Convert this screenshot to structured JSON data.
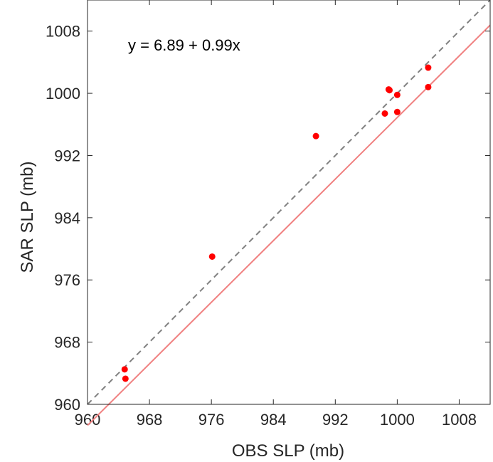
{
  "chart_data": {
    "type": "scatter",
    "title": "",
    "xlabel": "OBS SLP (mb)",
    "ylabel": "SAR SLP (mb)",
    "xlim": [
      960,
      1012
    ],
    "ylim": [
      960,
      1012
    ],
    "xticks": [
      960,
      968,
      976,
      984,
      992,
      1000,
      1008
    ],
    "yticks": [
      960,
      968,
      976,
      984,
      992,
      1000,
      1008
    ],
    "grid": false,
    "annotation": "y = 6.89 + 0.99x",
    "fit": {
      "intercept": 6.89,
      "slope": 0.99,
      "color": "#f08080"
    },
    "identity_line": {
      "color": "#808080",
      "style": "dashed"
    },
    "marker_color": "#ff0000",
    "points": [
      {
        "x": 964.8,
        "y": 964.5
      },
      {
        "x": 964.9,
        "y": 963.3
      },
      {
        "x": 976.1,
        "y": 979.0
      },
      {
        "x": 989.5,
        "y": 994.5
      },
      {
        "x": 998.4,
        "y": 997.4
      },
      {
        "x": 998.9,
        "y": 1000.5
      },
      {
        "x": 999.0,
        "y": 1000.4
      },
      {
        "x": 1000.0,
        "y": 999.8
      },
      {
        "x": 1000.0,
        "y": 997.6
      },
      {
        "x": 1004.0,
        "y": 1003.3
      },
      {
        "x": 1004.0,
        "y": 1000.8
      }
    ]
  }
}
